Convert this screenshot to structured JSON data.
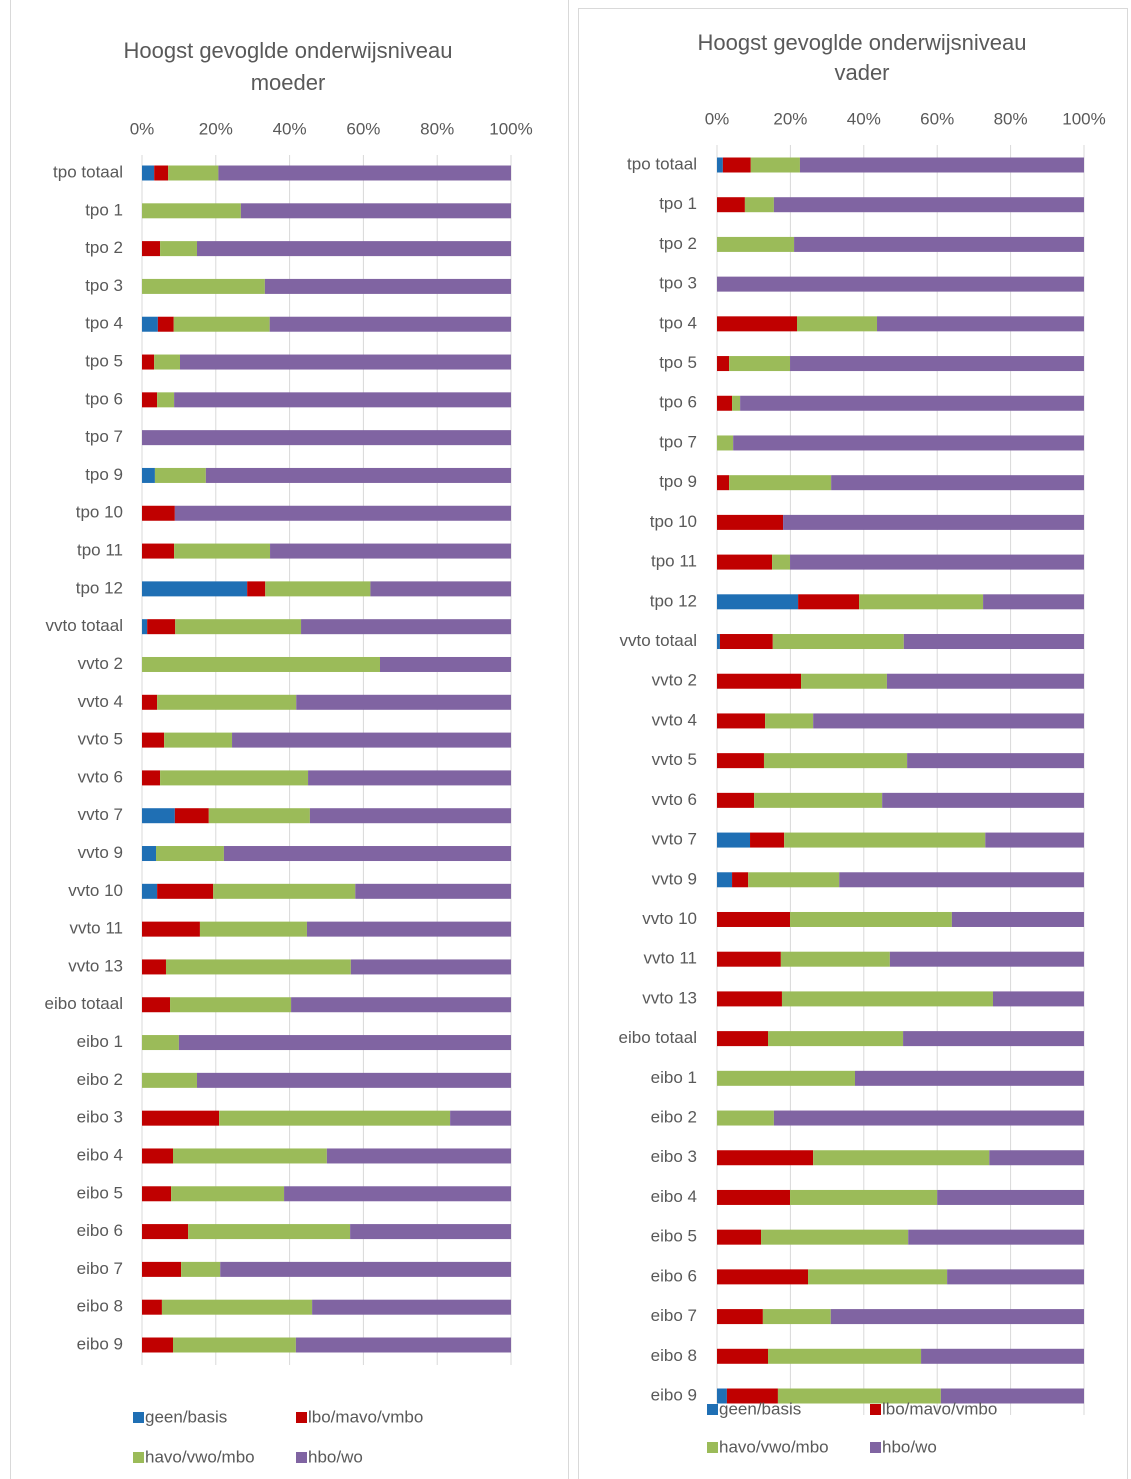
{
  "chart_data": [
    {
      "type": "bar",
      "stacked": true,
      "horizontal": true,
      "title": [
        "Hoogst gevoglde onderwijsniveau",
        "moeder"
      ],
      "categories": [
        "tpo totaal",
        "tpo 1",
        "tpo 2",
        "tpo 3",
        "tpo 4",
        "tpo 5",
        "tpo 6",
        "tpo 7",
        "tpo 9",
        "tpo 10",
        "tpo 11",
        "tpo 12",
        "vvto totaal",
        "vvto 2",
        "vvto 4",
        "vvto 5",
        "vvto 6",
        "vvto 7",
        "vvto 9",
        "vvto 10",
        "vvto 11",
        "vvto 13",
        "eibo totaal",
        "eibo 1",
        "eibo 2",
        "eibo 3",
        "eibo 4",
        "eibo 5",
        "eibo 6",
        "eibo 7",
        "eibo 8",
        "eibo 9"
      ],
      "series": [
        {
          "name": "geen/basis",
          "color": "#1f6fb4",
          "values": [
            3.3,
            0,
            0,
            0,
            4.3,
            0,
            0,
            0,
            3.5,
            0,
            0,
            28.5,
            1.4,
            0,
            0,
            0,
            0,
            8.9,
            3.8,
            4.1,
            0,
            0,
            0,
            0,
            0,
            0,
            0,
            0,
            0,
            0,
            0,
            0
          ]
        },
        {
          "name": "lbo/mavo/vmbo",
          "color": "#c00000",
          "values": [
            3.8,
            0,
            4.9,
            0,
            4.3,
            3.3,
            4.1,
            0,
            0,
            8.9,
            8.7,
            4.9,
            7.6,
            0,
            4.1,
            6,
            4.9,
            9.2,
            0,
            15.2,
            15.7,
            6.5,
            7.6,
            0,
            0,
            20.9,
            8.4,
            7.9,
            12.5,
            10.6,
            5.4,
            8.4
          ]
        },
        {
          "name": "havo/vwo/mbo",
          "color": "#9bbb59",
          "values": [
            13.6,
            26.8,
            10,
            33.3,
            26,
            7,
            4.6,
            0,
            13.8,
            0,
            26,
            28.5,
            34.1,
            64.5,
            37.7,
            18.4,
            40.1,
            27.4,
            18.4,
            38.5,
            29,
            50.1,
            32.8,
            10,
            14.9,
            62.6,
            41.7,
            30.6,
            43.9,
            10.6,
            40.7,
            33.3
          ]
        },
        {
          "name": "hbo/wo",
          "color": "#8064a2",
          "values": [
            79.3,
            73.2,
            85.1,
            66.7,
            65.4,
            89.7,
            91.3,
            100,
            82.7,
            91.1,
            65.3,
            38.1,
            56.9,
            35.5,
            58.2,
            75.6,
            55,
            54.5,
            77.8,
            42.2,
            55.3,
            43.4,
            59.6,
            90,
            85.1,
            16.5,
            49.9,
            61.5,
            43.6,
            78.8,
            53.9,
            58.3
          ]
        }
      ],
      "xlim": [
        0,
        100
      ],
      "xticks": [
        {
          "value": 0,
          "label": "0%"
        },
        {
          "value": 20,
          "label": "20%"
        },
        {
          "value": 40,
          "label": "40%"
        },
        {
          "value": 60,
          "label": "60%"
        },
        {
          "value": 80,
          "label": "80%"
        },
        {
          "value": 100,
          "label": "100%"
        }
      ],
      "grid": true,
      "legend": "bottom"
    },
    {
      "type": "bar",
      "stacked": true,
      "horizontal": true,
      "title": [
        "Hoogst gevoglde onderwijsniveau",
        "vader"
      ],
      "categories": [
        "tpo totaal",
        "tpo 1",
        "tpo 2",
        "tpo 3",
        "tpo 4",
        "tpo 5",
        "tpo 6",
        "tpo 7",
        "tpo 9",
        "tpo 10",
        "tpo 11",
        "tpo 12",
        "vvto totaal",
        "vvto 2",
        "vvto 4",
        "vvto 5",
        "vvto 6",
        "vvto 7",
        "vvto 9",
        "vvto 10",
        "vvto 11",
        "vvto 13",
        "eibo totaal",
        "eibo 1",
        "eibo 2",
        "eibo 3",
        "eibo 4",
        "eibo 5",
        "eibo 6",
        "eibo 7",
        "eibo 8",
        "eibo 9"
      ],
      "series": [
        {
          "name": "geen/basis",
          "color": "#1f6fb4",
          "values": [
            1.6,
            0,
            0,
            0,
            0,
            0,
            0,
            0,
            0,
            0,
            0,
            22.1,
            0.8,
            0,
            0,
            0,
            0,
            9,
            4.1,
            0,
            0,
            0,
            0,
            0,
            0,
            0,
            0,
            0,
            0,
            0,
            0,
            2.7
          ]
        },
        {
          "name": "lbo/mavo/vmbo",
          "color": "#c00000",
          "values": [
            7.6,
            7.6,
            0,
            0,
            21.8,
            3.3,
            4.1,
            0,
            3.3,
            18,
            15,
            16.6,
            14.4,
            22.9,
            13.1,
            12.8,
            10.1,
            9.3,
            4.4,
            19.9,
            17.4,
            17.7,
            13.9,
            0,
            0,
            26.2,
            19.9,
            12,
            24.8,
            12.5,
            13.9,
            13.9
          ]
        },
        {
          "name": "havo/vwo/mbo",
          "color": "#9bbb59",
          "values": [
            13.4,
            7.9,
            21,
            0,
            21.8,
            16.6,
            2.2,
            4.4,
            27.8,
            0,
            4.9,
            33.8,
            35.7,
            23.4,
            13.1,
            39,
            34.9,
            54.8,
            24.8,
            44.1,
            29.7,
            57.5,
            36.8,
            37.6,
            15.5,
            48,
            40.1,
            40.1,
            37.9,
            18.5,
            41.7,
            44.4
          ]
        },
        {
          "name": "hbo/wo",
          "color": "#8064a2",
          "values": [
            77.4,
            84.5,
            79,
            100,
            56.4,
            80.1,
            93.7,
            95.6,
            68.9,
            82,
            80.1,
            27.5,
            49.1,
            53.7,
            73.8,
            48.2,
            55,
            26.9,
            66.7,
            36,
            52.9,
            24.8,
            49.3,
            62.4,
            84.5,
            25.8,
            40,
            47.9,
            37.3,
            69,
            44.4,
            39
          ]
        }
      ],
      "xlim": [
        0,
        100
      ],
      "xticks": [
        {
          "value": 0,
          "label": "0%"
        },
        {
          "value": 20,
          "label": "20%"
        },
        {
          "value": 40,
          "label": "40%"
        },
        {
          "value": 60,
          "label": "60%"
        },
        {
          "value": 80,
          "label": "80%"
        },
        {
          "value": 100,
          "label": "100%"
        }
      ],
      "grid": true,
      "legend": "bottom"
    }
  ]
}
